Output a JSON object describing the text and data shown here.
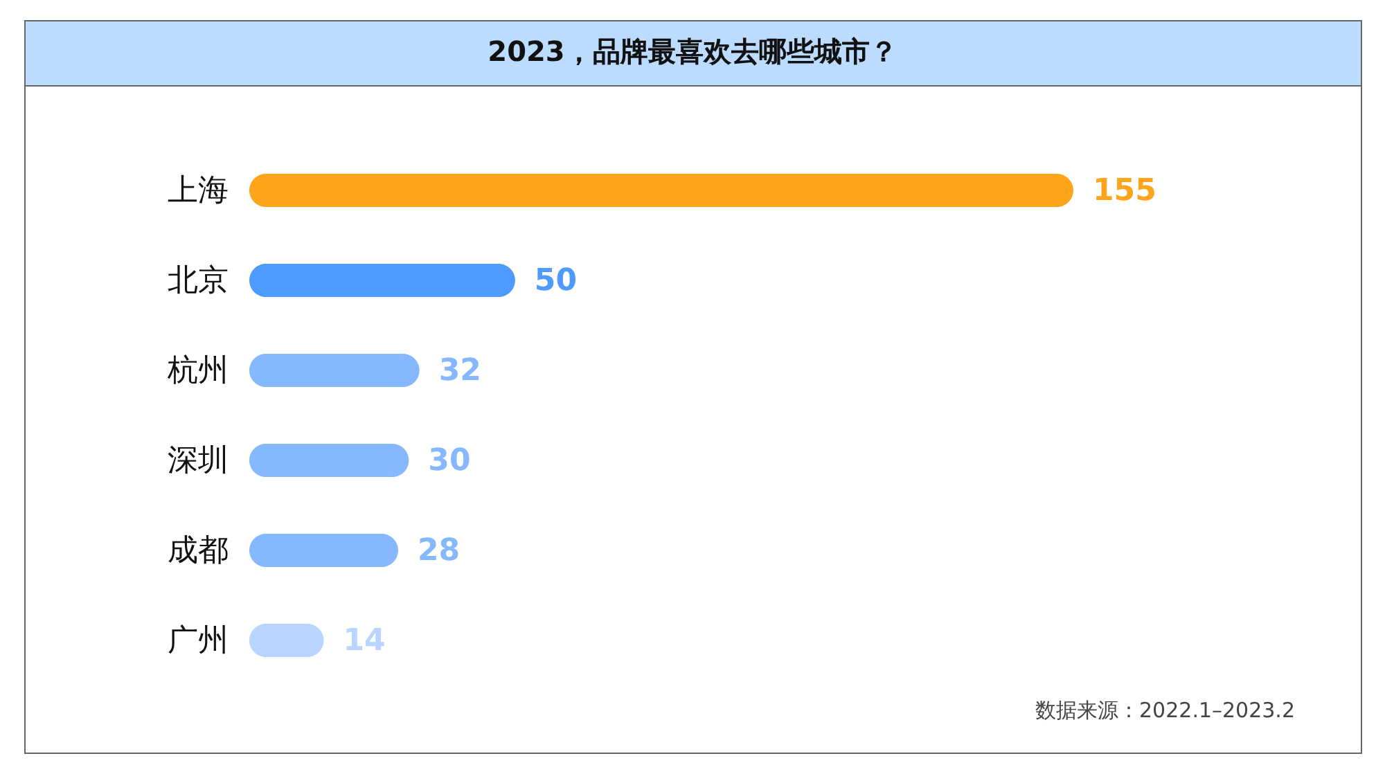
{
  "chart_data": {
    "type": "bar",
    "orientation": "horizontal",
    "title": "2023，品牌最喜欢去哪些城市？",
    "categories": [
      "上海",
      "北京",
      "杭州",
      "深圳",
      "成都",
      "广州"
    ],
    "values": [
      155,
      50,
      32,
      30,
      28,
      14
    ],
    "colors": [
      "#ffa41b",
      "#4e9bff",
      "#86b8ff",
      "#86b8ff",
      "#86b8ff",
      "#b8d5ff"
    ],
    "data_labels": true,
    "annotations": [
      "数据来源：2022.1–2023.2"
    ]
  }
}
